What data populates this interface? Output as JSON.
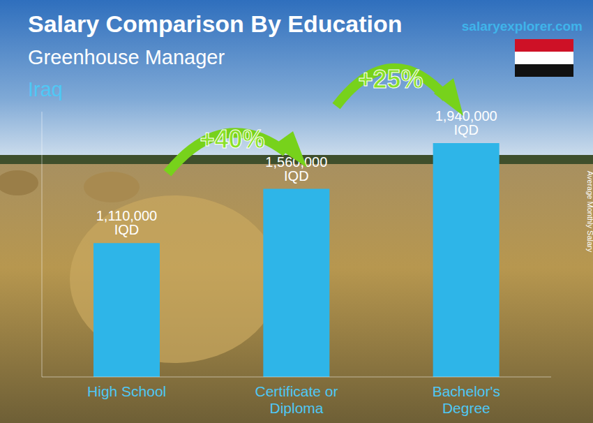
{
  "chart_data": {
    "type": "bar",
    "title": "Salary Comparison By Education",
    "subtitle": "Greenhouse Manager",
    "annotations": [
      "Iraq",
      "salaryexplorer.com",
      "+40%",
      "+25%"
    ],
    "ylabel": "Average Monthly Salary",
    "categories": [
      "High School",
      "Certificate or Diploma",
      "Bachelor's Degree"
    ],
    "values": [
      1110000,
      1560000,
      1940000
    ],
    "value_labels": [
      "1,110,000 IQD",
      "1,560,000 IQD",
      "1,940,000 IQD"
    ],
    "color": "#2eb5e8",
    "ylim": [
      0,
      2200000
    ],
    "data_labels": true,
    "tick_labels": "x",
    "grid": false
  }
}
